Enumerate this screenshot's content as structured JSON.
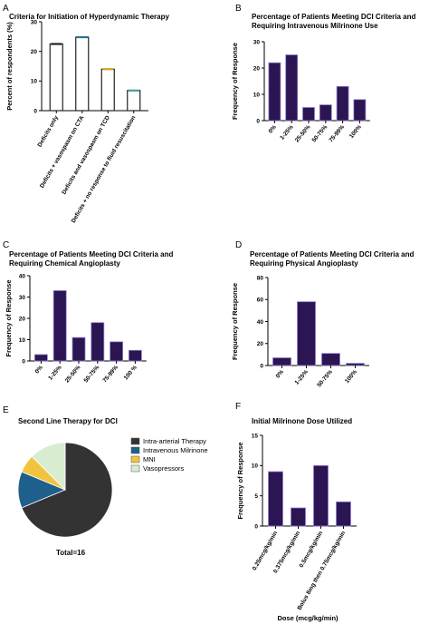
{
  "chart_data": [
    {
      "id": "A",
      "letter": "A",
      "type": "bar",
      "title": "Criteria for Initiation of  Hyperdynamic  Therapy",
      "ylabel": "Percent of respondents (%)",
      "ylim": [
        0,
        30
      ],
      "yticks": [
        0,
        10,
        20,
        30
      ],
      "categories": [
        "Deficits only",
        "Deficits + vasospasm on CTA",
        "Deficits and vasospasm on TCD",
        "Deficits + no response to fluid resuscitation"
      ],
      "values": [
        22.5,
        24.8,
        14,
        6.8
      ],
      "colors": [
        "#222222",
        "#2a6f97",
        "#d4a017",
        "#4a9a9a"
      ]
    },
    {
      "id": "B",
      "letter": "B",
      "type": "bar",
      "title": "Percentage of Patients Meeting  DCI  Criteria and",
      "title2": "Requiring Intravenous Milrinone  Use",
      "ylabel": "Frequency of Response",
      "ylim": [
        0,
        30
      ],
      "yticks": [
        0,
        10,
        20,
        30
      ],
      "categories": [
        "0%",
        "1-25%",
        "25-50%",
        "50-75%",
        "75-99%",
        "100%"
      ],
      "values": [
        22,
        25,
        5,
        6,
        13,
        8
      ]
    },
    {
      "id": "C",
      "letter": "C",
      "type": "bar",
      "title": "Percentage of Patients Meeting  DCI  Criteria and",
      "title2": "Requiring Chemical  Angioplasty",
      "ylabel": "Frequency of Response",
      "ylim": [
        0,
        40
      ],
      "yticks": [
        0,
        10,
        20,
        30,
        40
      ],
      "categories": [
        "0%",
        "1-25%",
        "25-50%",
        "50-75%",
        "75-99%",
        "100 %"
      ],
      "values": [
        3,
        33,
        11,
        18,
        9,
        5
      ]
    },
    {
      "id": "D",
      "letter": "D",
      "type": "bar",
      "title": "Percentage of Patients Meeting  DCI  Criteria and",
      "title2": "Requiring Physical Angioplasty",
      "ylabel": "Frequency of Response",
      "ylim": [
        0,
        80
      ],
      "yticks": [
        0,
        20,
        40,
        60,
        80
      ],
      "categories": [
        "0%",
        "1-25%",
        "50-75%",
        "100%"
      ],
      "values": [
        7,
        58,
        11,
        2
      ]
    },
    {
      "id": "E",
      "letter": "E",
      "type": "pie",
      "title": "Second  Line Therapy for  DCI",
      "labels": [
        "Intra-arterial Therapy",
        "Intravenous Milrinone",
        "MNI",
        "Vasopressors"
      ],
      "values": [
        11,
        2,
        1,
        2
      ],
      "colors": [
        "#333333",
        "#1f5f8b",
        "#f2c43d",
        "#d8ecd0"
      ],
      "total_label": "Total=16"
    },
    {
      "id": "F",
      "letter": "F",
      "type": "bar",
      "title": "Initial Milrinone  Dose Utilized",
      "ylabel": "Frequency of Response",
      "xlabel": "Dose (mcg/kg/min)",
      "ylim": [
        0,
        15
      ],
      "yticks": [
        0,
        5,
        10,
        15
      ],
      "categories": [
        "0.25mcg/kg/min",
        "0.375mcg/kg/min",
        "0.5mcg/kg/min",
        "Bolus 8mg then 0.75mcg/kg/min"
      ],
      "values": [
        9,
        3,
        10,
        4
      ]
    }
  ]
}
